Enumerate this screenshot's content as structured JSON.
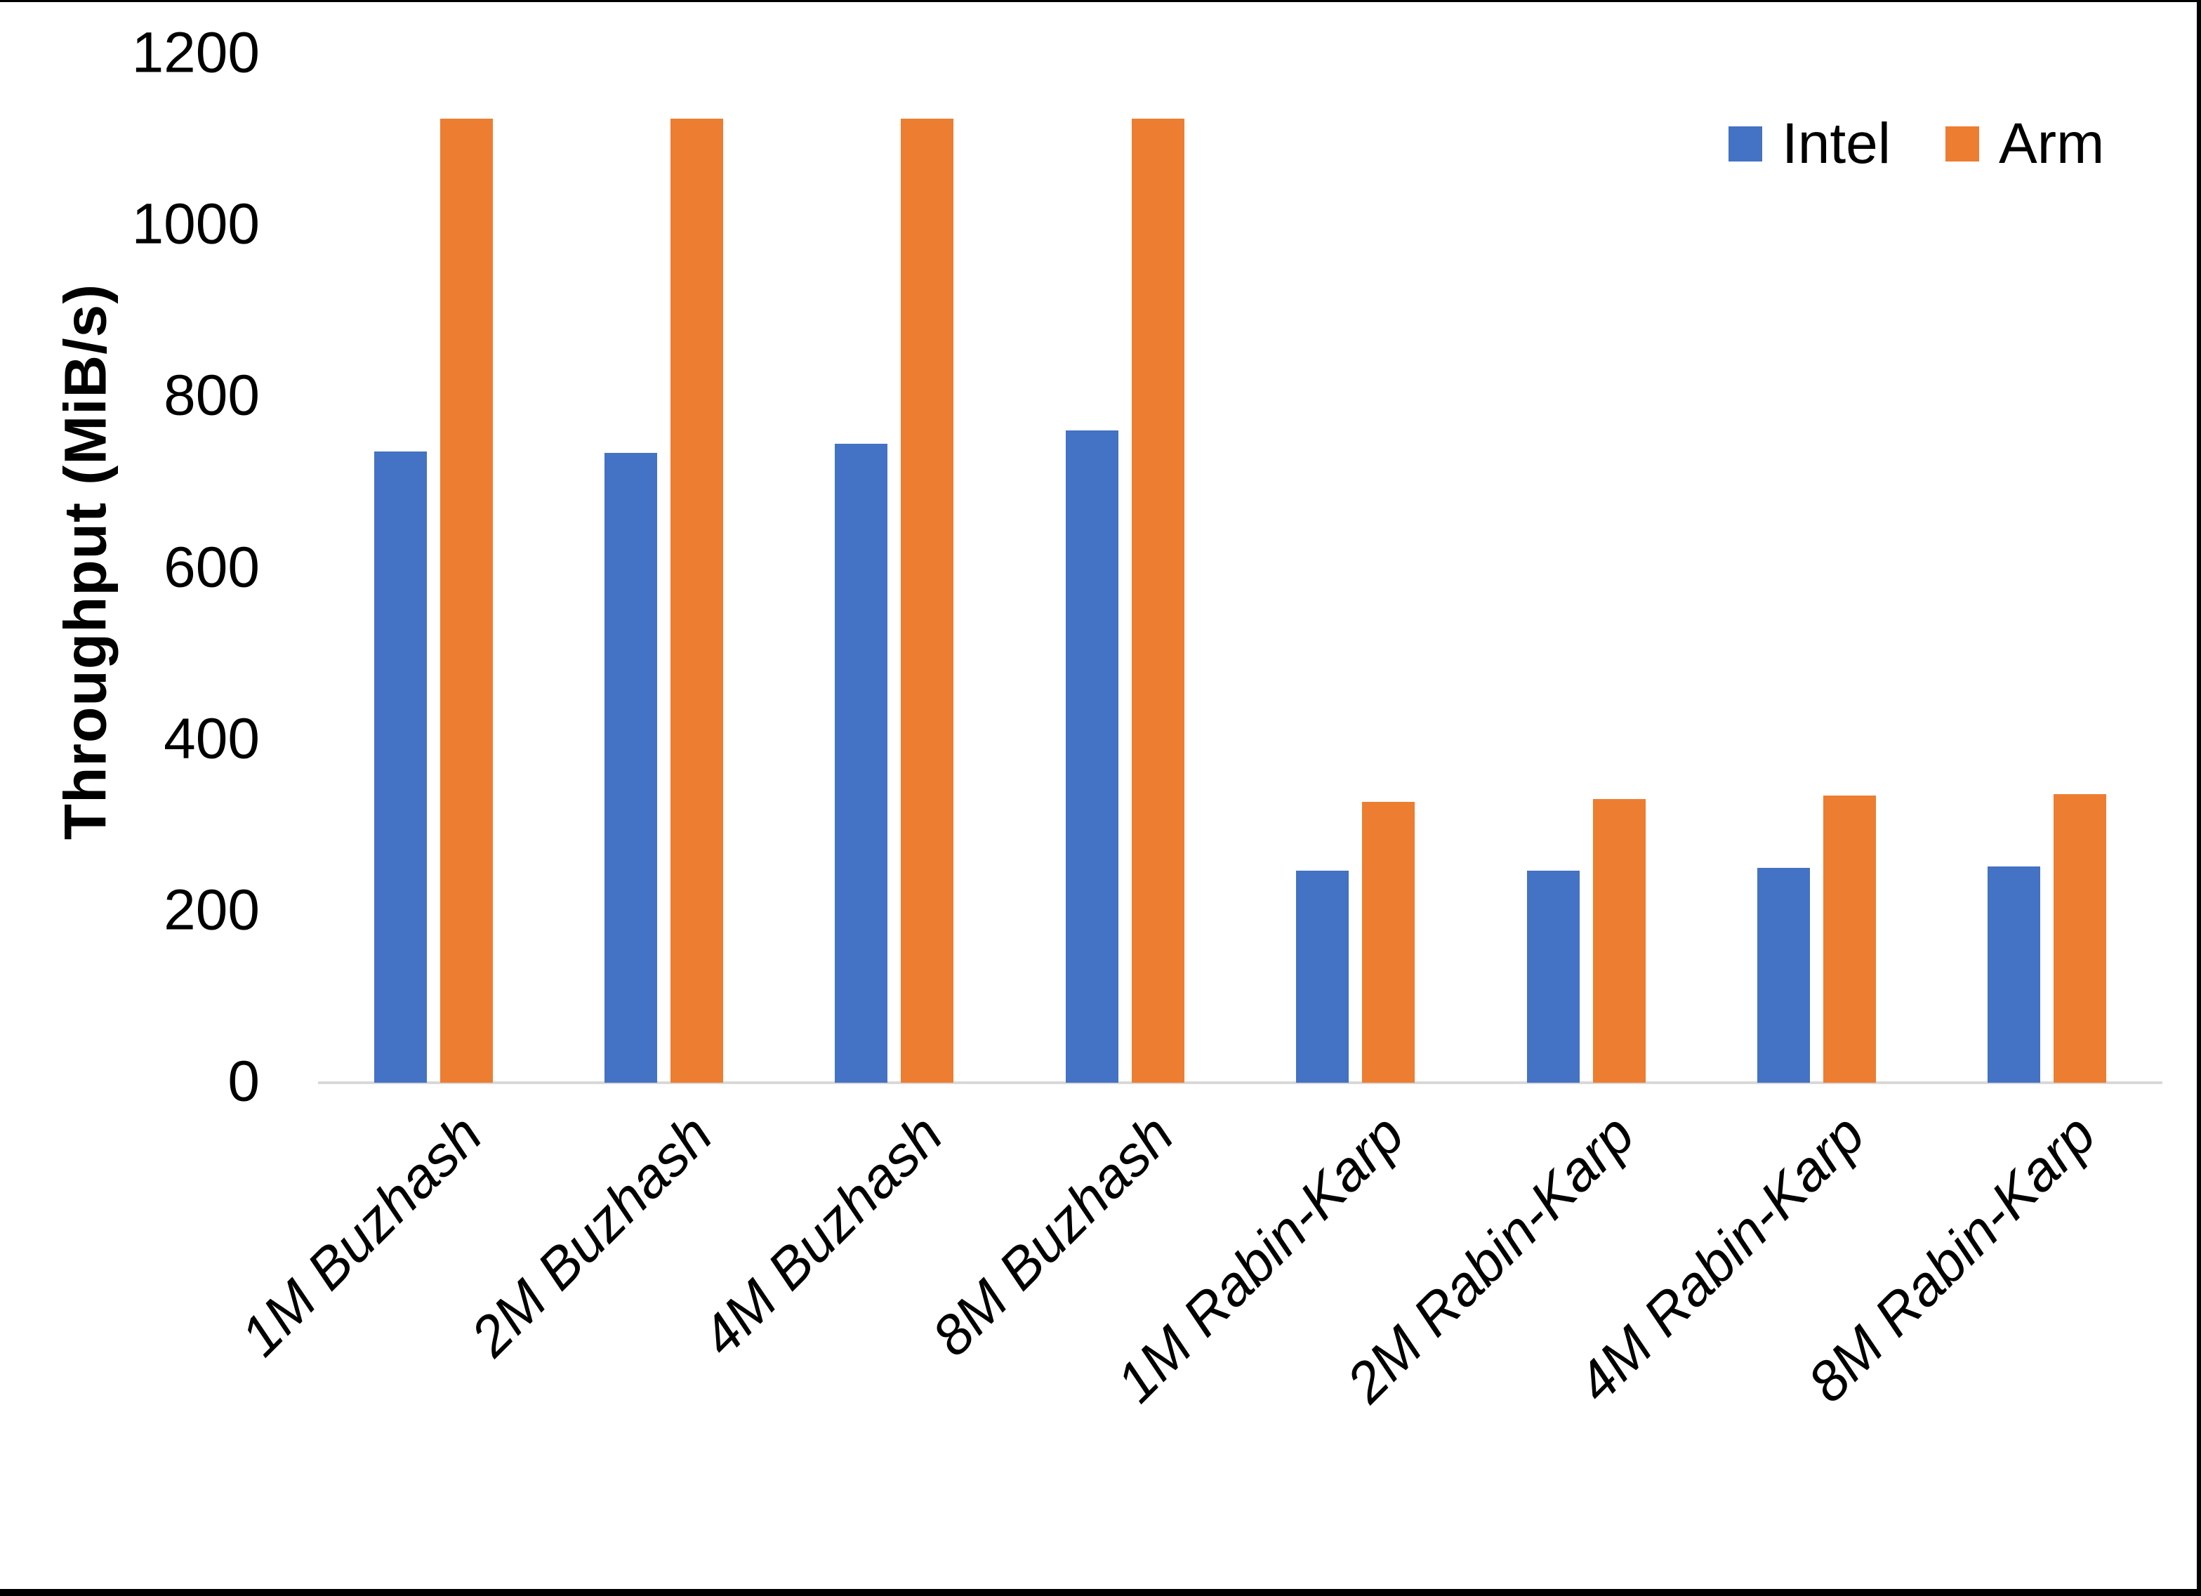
{
  "chart_data": {
    "type": "bar",
    "title": "",
    "xlabel": "",
    "ylabel": "Throughput (MiB/s)",
    "ylim": [
      0,
      1200
    ],
    "yticks": [
      0,
      200,
      400,
      600,
      800,
      1000,
      1200
    ],
    "grid": false,
    "legend_position": "top-right",
    "axis_line_color": "#d9d9d9",
    "background_color": "#ffffff",
    "text_color": "#000000",
    "categories": [
      "1M Buzhash",
      "2M Buzhash",
      "4M Buzhash",
      "8M Buzhash",
      "1M Rabin-Karp",
      "2M Rabin-Karp",
      "4M Rabin-Karp",
      "8M Rabin-Karp"
    ],
    "series": [
      {
        "name": "Intel",
        "color": "#4472C4",
        "values": [
          736,
          735,
          745,
          761,
          247,
          247,
          251,
          252
        ]
      },
      {
        "name": "Arm",
        "color": "#ED7D31",
        "values": [
          1125,
          1125,
          1125,
          1125,
          328,
          331,
          335,
          337
        ]
      }
    ]
  }
}
